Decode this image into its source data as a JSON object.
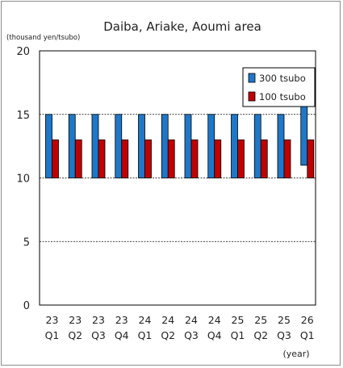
{
  "chart_data": {
    "type": "bar",
    "title": "Daiba, Ariake, Aoumi area",
    "unit_label": "(thousand yen/tsubo)",
    "xlabel": "(year)",
    "ylabel": "",
    "ylim": [
      0,
      20
    ],
    "y_ticks": [
      0,
      5,
      10,
      15,
      20
    ],
    "grid": true,
    "legend_position": "top-right",
    "categories": [
      {
        "year": "23",
        "quarter": "Q1"
      },
      {
        "year": "23",
        "quarter": "Q2"
      },
      {
        "year": "23",
        "quarter": "Q3"
      },
      {
        "year": "23",
        "quarter": "Q4"
      },
      {
        "year": "24",
        "quarter": "Q1"
      },
      {
        "year": "24",
        "quarter": "Q2"
      },
      {
        "year": "24",
        "quarter": "Q3"
      },
      {
        "year": "24",
        "quarter": "Q4"
      },
      {
        "year": "25",
        "quarter": "Q1"
      },
      {
        "year": "25",
        "quarter": "Q2"
      },
      {
        "year": "25",
        "quarter": "Q3"
      },
      {
        "year": "26",
        "quarter": "Q1"
      }
    ],
    "series": [
      {
        "name": "300 tsubo",
        "color": "#1f77c8",
        "ranges": [
          [
            10,
            15
          ],
          [
            10,
            15
          ],
          [
            10,
            15
          ],
          [
            10,
            15
          ],
          [
            10,
            15
          ],
          [
            10,
            15
          ],
          [
            10,
            15
          ],
          [
            10,
            15
          ],
          [
            10,
            15
          ],
          [
            10,
            15
          ],
          [
            10,
            15
          ],
          [
            11,
            16
          ]
        ]
      },
      {
        "name": "100 tsubo",
        "color": "#c00000",
        "ranges": [
          [
            10,
            13
          ],
          [
            10,
            13
          ],
          [
            10,
            13
          ],
          [
            10,
            13
          ],
          [
            10,
            13
          ],
          [
            10,
            13
          ],
          [
            10,
            13
          ],
          [
            10,
            13
          ],
          [
            10,
            13
          ],
          [
            10,
            13
          ],
          [
            10,
            13
          ],
          [
            10,
            13
          ]
        ]
      }
    ]
  }
}
